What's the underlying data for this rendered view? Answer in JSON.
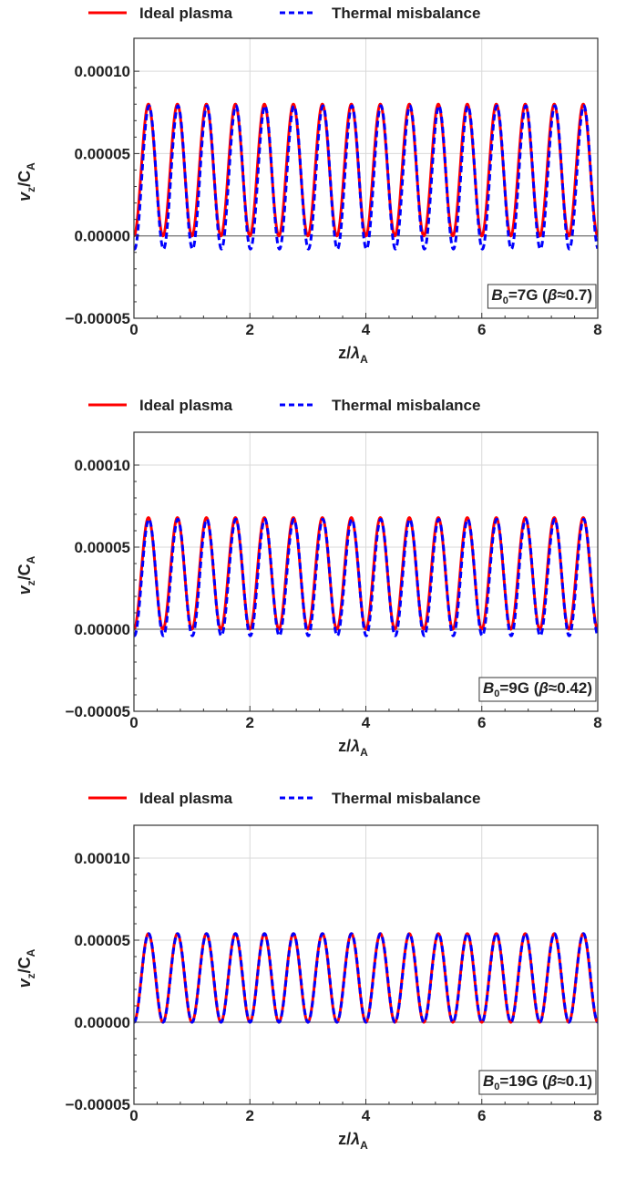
{
  "chart_data": [
    {
      "type": "line",
      "legend": [
        "Ideal plasma",
        "Thermal misbalance"
      ],
      "xlabel": "z/",
      "xlabel_symbol": "λ",
      "xlabel_sub": "A",
      "ylabel_main": "v",
      "ylabel_sub": "z",
      "ylabel_slash": "/C",
      "ylabel_sub2": "A",
      "xlim": [
        0,
        8
      ],
      "ylim": [
        -5e-05,
        0.00012
      ],
      "x_ticks": [
        "0",
        "2",
        "4",
        "6",
        "8"
      ],
      "y_ticks": [
        "−0.00005",
        "0.00000",
        "0.00005",
        "0.00010"
      ],
      "y_tick_values": [
        -5e-05,
        0,
        5e-05,
        0.0001
      ],
      "grid": true,
      "annotation": {
        "b": "B",
        "b_sub": "0",
        "rest": "=7G (",
        "beta": "β",
        "approx": "≈0.7)"
      },
      "series": [
        {
          "name": "Ideal plasma",
          "color": "#ff0000",
          "style": "solid",
          "amplitude": 8e-05,
          "offset": 0.0,
          "period": 0.5,
          "phase": 0.0
        },
        {
          "name": "Thermal misbalance",
          "color": "#0000ff",
          "style": "dashed",
          "amplitude": 7.9e-05,
          "offset": -8e-06,
          "period": 0.5,
          "phase": 0.02
        }
      ]
    },
    {
      "type": "line",
      "legend": [
        "Ideal plasma",
        "Thermal misbalance"
      ],
      "xlabel": "z/",
      "xlabel_symbol": "λ",
      "xlabel_sub": "A",
      "ylabel_main": "v",
      "ylabel_sub": "z",
      "ylabel_slash": "/C",
      "ylabel_sub2": "A",
      "xlim": [
        0,
        8
      ],
      "ylim": [
        -5e-05,
        0.00012
      ],
      "x_ticks": [
        "0",
        "2",
        "4",
        "6",
        "8"
      ],
      "y_ticks": [
        "−0.00005",
        "0.00000",
        "0.00005",
        "0.00010"
      ],
      "y_tick_values": [
        -5e-05,
        0,
        5e-05,
        0.0001
      ],
      "grid": true,
      "annotation": {
        "b": "B",
        "b_sub": "0",
        "rest": "=9G (",
        "beta": "β",
        "approx": "≈0.42)"
      },
      "series": [
        {
          "name": "Ideal plasma",
          "color": "#ff0000",
          "style": "solid",
          "amplitude": 6.8e-05,
          "offset": 0.0,
          "period": 0.5,
          "phase": 0.0
        },
        {
          "name": "Thermal misbalance",
          "color": "#0000ff",
          "style": "dashed",
          "amplitude": 6.7e-05,
          "offset": -4e-06,
          "period": 0.5,
          "phase": 0.015
        }
      ]
    },
    {
      "type": "line",
      "legend": [
        "Ideal plasma",
        "Thermal misbalance"
      ],
      "xlabel": "z/",
      "xlabel_symbol": "λ",
      "xlabel_sub": "A",
      "ylabel_main": "v",
      "ylabel_sub": "z",
      "ylabel_slash": "/C",
      "ylabel_sub2": "A",
      "xlim": [
        0,
        8
      ],
      "ylim": [
        -5e-05,
        0.00012
      ],
      "x_ticks": [
        "0",
        "2",
        "4",
        "6",
        "8"
      ],
      "y_ticks": [
        "−0.00005",
        "0.00000",
        "0.00005",
        "0.00010"
      ],
      "y_tick_values": [
        -5e-05,
        0,
        5e-05,
        0.0001
      ],
      "grid": true,
      "annotation": {
        "b": "B",
        "b_sub": "0",
        "rest": "=19G (",
        "beta": "β",
        "approx": "≈0.1)"
      },
      "series": [
        {
          "name": "Ideal plasma",
          "color": "#ff0000",
          "style": "solid",
          "amplitude": 5.4e-05,
          "offset": 0.0,
          "period": 0.5,
          "phase": 0.0
        },
        {
          "name": "Thermal misbalance",
          "color": "#0000ff",
          "style": "dashed",
          "amplitude": 5.4e-05,
          "offset": 0.0,
          "period": 0.5,
          "phase": 0.005
        }
      ]
    }
  ]
}
